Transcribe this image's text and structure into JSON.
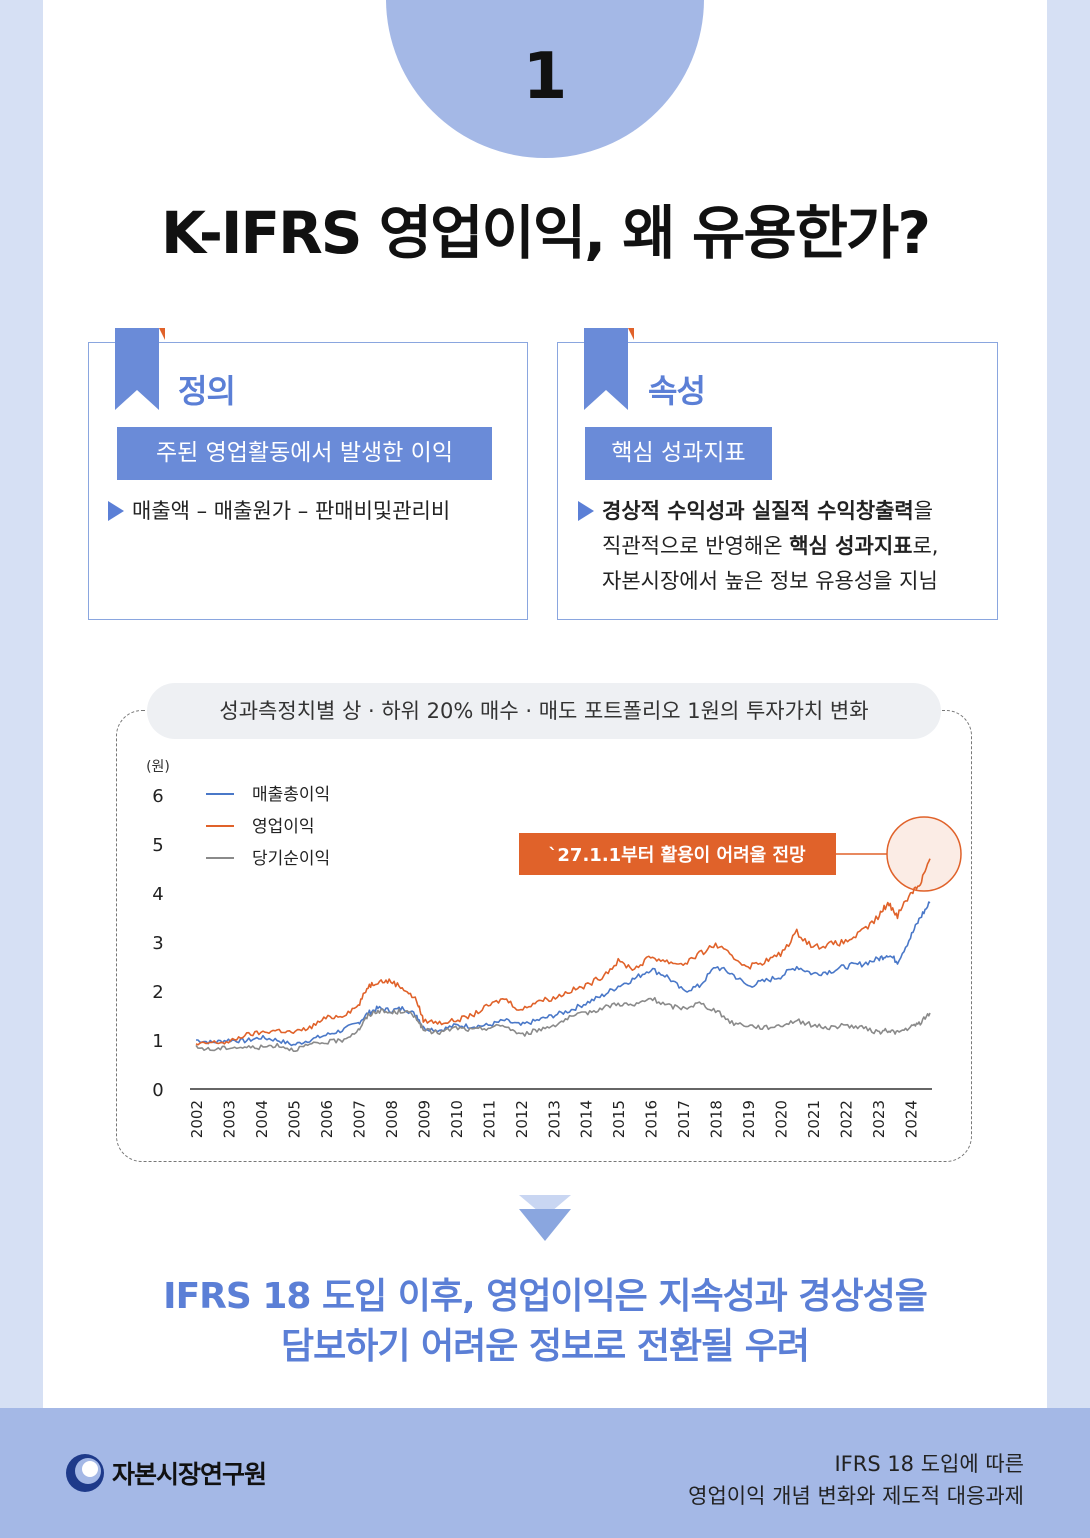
{
  "header": {
    "number": "1",
    "title": "K-IFRS 영업이익, 왜 유용한가?"
  },
  "cards": {
    "definition": {
      "title": "정의",
      "tag": "주된 영업활동에서 발생한 이익",
      "bullet": "매출액 – 매출원가 – 판매비및관리비"
    },
    "attribute": {
      "title": "속성",
      "tag": "핵심 성과지표",
      "bullet_bold_1": "경상적 수익성과 실질적 수익창출력",
      "bullet_text_1": "을",
      "bullet_text_2": "직관적으로 반영해온 ",
      "bullet_bold_2": "핵심 성과지표",
      "bullet_text_3": "로,",
      "bullet_text_4": "자본시장에서 높은 정보 유용성을 지님"
    }
  },
  "chart_data": {
    "type": "line",
    "title": "성과측정치별 상 · 하위 20% 매수 · 매도 포트폴리오 1원의 투자가치 변화",
    "ylabel": "(원)",
    "ylim": [
      0,
      6
    ],
    "yticks": [
      "0",
      "1",
      "2",
      "3",
      "4",
      "5",
      "6"
    ],
    "xlim": [
      2002,
      2024.6
    ],
    "x_labels": [
      "2002",
      "2003",
      "2004",
      "2005",
      "2006",
      "2007",
      "2008",
      "2009",
      "2010",
      "2011",
      "2012",
      "2013",
      "2014",
      "2015",
      "2016",
      "2017",
      "2018",
      "2019",
      "2020",
      "2021",
      "2022",
      "2023",
      "2024"
    ],
    "legend_position": "top-left",
    "annotation": "`27.1.1부터 활용이 어려울 전망",
    "colors": {
      "gross": "#4a78c8",
      "operating": "#e0622a",
      "net": "#8a8a8a",
      "annotation": "#e0622a"
    },
    "series": [
      {
        "name": "매출총이익",
        "x": [
          2002,
          2002.5,
          2003,
          2003.5,
          2004,
          2004.5,
          2005,
          2005.5,
          2006,
          2006.5,
          2007,
          2007.3,
          2007.6,
          2008,
          2008.4,
          2008.8,
          2009,
          2009.5,
          2010,
          2010.5,
          2011,
          2011.5,
          2012,
          2012.5,
          2013,
          2013.5,
          2014,
          2014.5,
          2015,
          2015.5,
          2016,
          2016.5,
          2017,
          2017.5,
          2018,
          2018.5,
          2019,
          2019.5,
          2020,
          2020.5,
          2021,
          2021.5,
          2022,
          2022.5,
          2023,
          2023.3,
          2023.6,
          2024,
          2024.3,
          2024.6
        ],
        "y": [
          1.0,
          0.95,
          1.0,
          0.98,
          1.05,
          1.0,
          0.9,
          1.0,
          1.1,
          1.2,
          1.35,
          1.55,
          1.65,
          1.6,
          1.65,
          1.5,
          1.25,
          1.2,
          1.3,
          1.28,
          1.3,
          1.4,
          1.3,
          1.4,
          1.5,
          1.6,
          1.75,
          1.9,
          2.1,
          2.25,
          2.45,
          2.3,
          2.0,
          2.1,
          2.5,
          2.35,
          2.1,
          2.2,
          2.3,
          2.5,
          2.35,
          2.4,
          2.5,
          2.55,
          2.65,
          2.75,
          2.6,
          3.1,
          3.5,
          3.8
        ]
      },
      {
        "name": "영업이익",
        "x": [
          2002,
          2002.5,
          2003,
          2003.5,
          2004,
          2004.5,
          2005,
          2005.5,
          2006,
          2006.5,
          2007,
          2007.3,
          2007.6,
          2008,
          2008.4,
          2008.8,
          2009,
          2009.5,
          2010,
          2010.5,
          2011,
          2011.5,
          2012,
          2012.5,
          2013,
          2013.5,
          2014,
          2014.5,
          2015,
          2015.5,
          2016,
          2016.5,
          2017,
          2017.5,
          2018,
          2018.5,
          2019,
          2019.5,
          2020,
          2020.5,
          2021,
          2021.5,
          2022,
          2022.5,
          2023,
          2023.3,
          2023.6,
          2024,
          2024.3,
          2024.6
        ],
        "y": [
          0.9,
          0.95,
          0.95,
          1.1,
          1.15,
          1.2,
          1.15,
          1.25,
          1.45,
          1.5,
          1.7,
          2.1,
          2.2,
          2.2,
          2.05,
          1.8,
          1.4,
          1.35,
          1.4,
          1.5,
          1.7,
          1.85,
          1.6,
          1.8,
          1.85,
          2.0,
          2.1,
          2.3,
          2.6,
          2.45,
          2.7,
          2.6,
          2.55,
          2.75,
          2.95,
          2.7,
          2.5,
          2.6,
          2.75,
          3.2,
          2.9,
          2.95,
          3.0,
          3.2,
          3.5,
          3.8,
          3.55,
          4.0,
          4.2,
          4.7
        ]
      },
      {
        "name": "당기순이익",
        "x": [
          2002,
          2002.5,
          2003,
          2003.5,
          2004,
          2004.5,
          2005,
          2005.5,
          2006,
          2006.5,
          2007,
          2007.3,
          2007.6,
          2008,
          2008.4,
          2008.8,
          2009,
          2009.5,
          2010,
          2010.5,
          2011,
          2011.5,
          2012,
          2012.5,
          2013,
          2013.5,
          2014,
          2014.5,
          2015,
          2015.5,
          2016,
          2016.5,
          2017,
          2017.5,
          2018,
          2018.5,
          2019,
          2019.5,
          2020,
          2020.5,
          2021,
          2021.5,
          2022,
          2022.5,
          2023,
          2023.3,
          2023.6,
          2024,
          2024.3,
          2024.6
        ],
        "y": [
          0.85,
          0.8,
          0.85,
          0.85,
          0.85,
          0.9,
          0.8,
          0.9,
          0.95,
          1.0,
          1.2,
          1.5,
          1.6,
          1.55,
          1.6,
          1.45,
          1.2,
          1.15,
          1.25,
          1.2,
          1.25,
          1.3,
          1.1,
          1.2,
          1.3,
          1.45,
          1.55,
          1.65,
          1.75,
          1.7,
          1.85,
          1.7,
          1.65,
          1.75,
          1.6,
          1.35,
          1.3,
          1.25,
          1.3,
          1.4,
          1.3,
          1.25,
          1.3,
          1.25,
          1.15,
          1.2,
          1.15,
          1.25,
          1.35,
          1.55
        ]
      }
    ]
  },
  "conclusion": {
    "line1": "IFRS 18 도입 이후, 영업이익은 지속성과 경상성을",
    "line2": "담보하기 어려운 정보로 전환될 우려"
  },
  "footer": {
    "org_name": "자본시장연구원",
    "doc_line1": "IFRS 18 도입에 따른",
    "doc_line2": "영업이익 개념 변화와 제도적 대응과제"
  }
}
